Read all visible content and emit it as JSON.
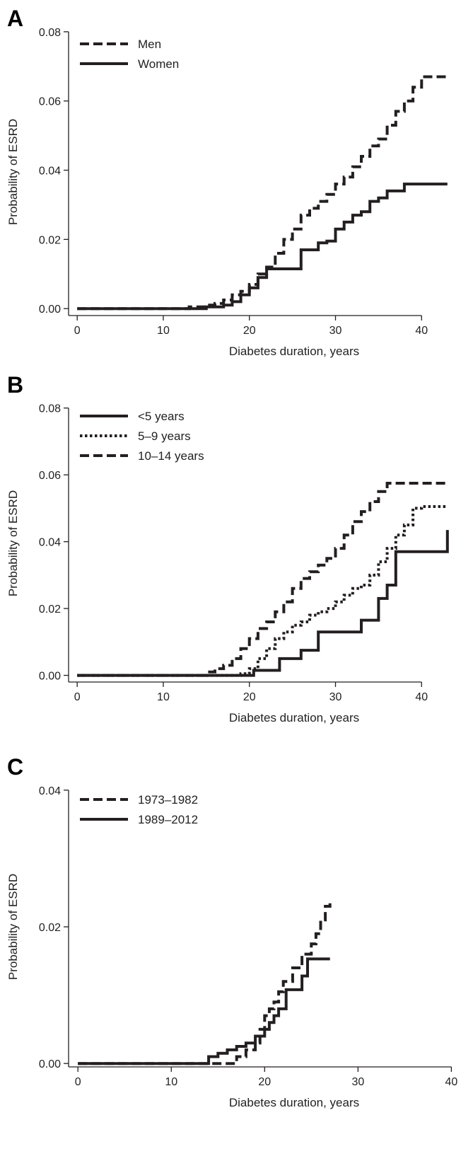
{
  "colors": {
    "line": "#231f20",
    "axis": "#231f20",
    "text": "#222222",
    "background": "#ffffff"
  },
  "chart_data": [
    {
      "panel": "A",
      "type": "line",
      "xlabel": "Diabetes duration, years",
      "ylabel": "Probability of ESRD",
      "xlim": [
        -1,
        44
      ],
      "ylim": [
        -0.002,
        0.081
      ],
      "xticks": [
        0,
        10,
        20,
        30,
        40
      ],
      "xtick_labels": [
        "0",
        "10",
        "20",
        "30",
        "40"
      ],
      "yticks": [
        0,
        0.02,
        0.04,
        0.06,
        0.08
      ],
      "ytick_labels": [
        "0.00",
        "0.02",
        "0.04",
        "0.06",
        "0.08"
      ],
      "grid": false,
      "legend_position": "top-left",
      "series": [
        {
          "name": "Men",
          "style": "dashed",
          "x": [
            0,
            12,
            13,
            15,
            16,
            17,
            18,
            19,
            20,
            21,
            22,
            23,
            24,
            25,
            26,
            27,
            28,
            29,
            30,
            31,
            32,
            33,
            34,
            35,
            36,
            37,
            38,
            39,
            40,
            41,
            42,
            43
          ],
          "y": [
            0,
            0,
            0.0005,
            0.001,
            0.0015,
            0.0025,
            0.004,
            0.005,
            0.007,
            0.01,
            0.012,
            0.016,
            0.02,
            0.023,
            0.027,
            0.029,
            0.031,
            0.033,
            0.036,
            0.038,
            0.041,
            0.044,
            0.047,
            0.049,
            0.053,
            0.057,
            0.06,
            0.064,
            0.067,
            0.067,
            0.067,
            0.067
          ]
        },
        {
          "name": "Women",
          "style": "solid",
          "x": [
            0,
            13,
            15,
            17,
            18,
            19,
            20,
            21,
            22,
            25,
            26,
            27,
            28,
            29,
            30,
            31,
            32,
            33,
            34,
            35,
            36,
            37,
            38,
            40,
            43
          ],
          "y": [
            0,
            0,
            0.0005,
            0.001,
            0.002,
            0.004,
            0.006,
            0.009,
            0.0115,
            0.0115,
            0.017,
            0.017,
            0.019,
            0.0195,
            0.023,
            0.025,
            0.027,
            0.028,
            0.031,
            0.032,
            0.034,
            0.034,
            0.036,
            0.036,
            0.036
          ]
        }
      ]
    },
    {
      "panel": "B",
      "type": "line",
      "xlabel": "Diabetes duration, years",
      "ylabel": "Probability of ESRD",
      "xlim": [
        -1,
        44
      ],
      "ylim": [
        -0.002,
        0.081
      ],
      "xticks": [
        0,
        10,
        20,
        30,
        40
      ],
      "xtick_labels": [
        "0",
        "10",
        "20",
        "30",
        "40"
      ],
      "yticks": [
        0,
        0.02,
        0.04,
        0.06,
        0.08
      ],
      "ytick_labels": [
        "0.00",
        "0.02",
        "0.04",
        "0.06",
        "0.08"
      ],
      "grid": false,
      "legend_position": "top-left",
      "series": [
        {
          "name": "<5 years",
          "style": "solid",
          "x": [
            0,
            19.5,
            20.5,
            23.5,
            26,
            28,
            33,
            35,
            36,
            37,
            43
          ],
          "y": [
            0,
            0,
            0.0015,
            0.005,
            0.0075,
            0.013,
            0.0165,
            0.023,
            0.027,
            0.037,
            0.0435
          ]
        },
        {
          "name": "5–9 years",
          "style": "dotted",
          "x": [
            0,
            18,
            19,
            20,
            21,
            22,
            23,
            24,
            25,
            26,
            27,
            28,
            29,
            30,
            31,
            32,
            33,
            34,
            35,
            36,
            37,
            38,
            39,
            40,
            43
          ],
          "y": [
            0,
            0,
            0.0005,
            0.002,
            0.005,
            0.008,
            0.011,
            0.013,
            0.015,
            0.016,
            0.018,
            0.019,
            0.02,
            0.022,
            0.024,
            0.026,
            0.027,
            0.03,
            0.034,
            0.038,
            0.042,
            0.045,
            0.05,
            0.0505,
            0.0505
          ]
        },
        {
          "name": "10–14 years",
          "style": "dashed",
          "x": [
            0,
            13,
            15,
            16,
            17,
            18,
            19,
            20,
            21,
            22,
            23,
            24,
            25,
            26,
            27,
            28,
            29,
            30,
            31,
            32,
            33,
            34,
            35,
            36,
            43
          ],
          "y": [
            0,
            0,
            0.001,
            0.002,
            0.003,
            0.005,
            0.008,
            0.011,
            0.014,
            0.016,
            0.019,
            0.022,
            0.026,
            0.029,
            0.031,
            0.033,
            0.035,
            0.038,
            0.042,
            0.046,
            0.049,
            0.052,
            0.055,
            0.0575,
            0.0575
          ]
        }
      ]
    },
    {
      "panel": "C",
      "type": "line",
      "xlabel": "Diabetes duration, years",
      "ylabel": "Probability of ESRD",
      "xlim": [
        -1,
        40.5
      ],
      "ylim": [
        -0.0005,
        0.0405
      ],
      "xticks": [
        0,
        10,
        20,
        30,
        40
      ],
      "xtick_labels": [
        "0",
        "10",
        "20",
        "30",
        "40"
      ],
      "yticks": [
        0,
        0.02,
        0.04
      ],
      "ytick_labels": [
        "0.00",
        "0.02",
        "0.04"
      ],
      "grid": false,
      "legend_position": "top-left",
      "series": [
        {
          "name": "1973–1982",
          "style": "dashed",
          "x": [
            0,
            16,
            17,
            18,
            19,
            19.5,
            20,
            20.5,
            21,
            21.5,
            22,
            23,
            24,
            25,
            25.5,
            26,
            26.5,
            27
          ],
          "y": [
            0,
            0,
            0.001,
            0.002,
            0.003,
            0.005,
            0.007,
            0.008,
            0.009,
            0.0105,
            0.012,
            0.014,
            0.016,
            0.0175,
            0.019,
            0.021,
            0.023,
            0.024
          ]
        },
        {
          "name": "1989–2012",
          "style": "solid",
          "x": [
            0,
            13,
            14,
            15,
            16,
            17,
            18,
            19,
            20,
            20.5,
            21,
            21.5,
            22.3,
            24,
            24.6,
            27
          ],
          "y": [
            0,
            0,
            0.001,
            0.0015,
            0.002,
            0.0025,
            0.003,
            0.004,
            0.005,
            0.006,
            0.007,
            0.008,
            0.0108,
            0.0128,
            0.0153,
            0.0153
          ]
        }
      ]
    }
  ]
}
